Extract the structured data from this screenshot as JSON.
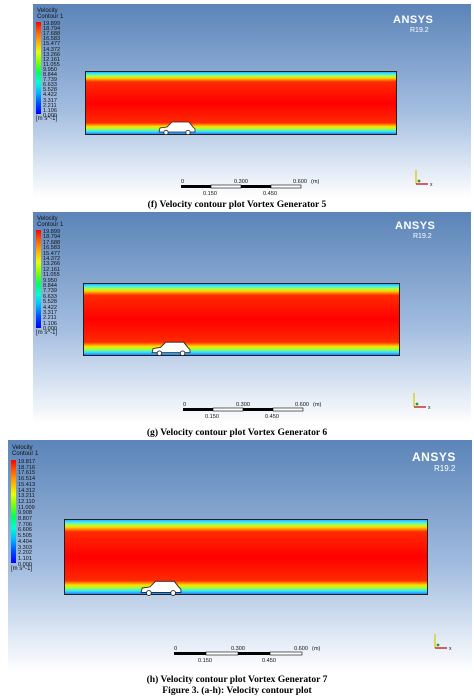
{
  "panels": [
    {
      "legend_title_1": "Velocity",
      "legend_title_2": "Contour 1",
      "ticks": [
        "19.899",
        "18.794",
        "17.688",
        "16.583",
        "15.477",
        "14.372",
        "13.266",
        "12.161",
        "11.055",
        "9.950",
        "8.844",
        "7.739",
        "6.633",
        "5.528",
        "4.422",
        "3.317",
        "2.211",
        "1.106",
        "0.000"
      ],
      "unit": "[m s^-1]",
      "brand": "ANSYS",
      "release": "R19.2",
      "scale_top": [
        "0",
        "0.300",
        "0.600",
        "(m)"
      ],
      "scale_bottom": [
        "0.150",
        "0.450"
      ],
      "caption": "(f) Velocity contour plot Vortex Generator 5"
    },
    {
      "legend_title_1": "Velocity",
      "legend_title_2": "Contour 1",
      "ticks": [
        "19.899",
        "18.794",
        "17.688",
        "16.583",
        "15.477",
        "14.372",
        "13.266",
        "12.161",
        "11.055",
        "9.950",
        "8.844",
        "7.739",
        "6.633",
        "5.528",
        "4.422",
        "3.317",
        "2.211",
        "1.106",
        "0.000"
      ],
      "unit": "[m s^-1]",
      "brand": "ANSYS",
      "release": "R19.2",
      "scale_top": [
        "0",
        "0.300",
        "0.600",
        "(m)"
      ],
      "scale_bottom": [
        "0.150",
        "0.450"
      ],
      "caption": "(g) Velocity contour plot Vortex Generator 6"
    },
    {
      "legend_title_1": "Velocity",
      "legend_title_2": "Contour 1",
      "ticks": [
        "19.817",
        "18.716",
        "17.615",
        "16.514",
        "15.413",
        "14.312",
        "13.211",
        "12.110",
        "11.009",
        "9.908",
        "8.807",
        "7.706",
        "6.606",
        "5.505",
        "4.404",
        "3.303",
        "2.202",
        "1.101",
        "0.000"
      ],
      "unit": "[m s^-1]",
      "brand": "ANSYS",
      "release": "R19.2",
      "scale_top": [
        "0",
        "0.300",
        "0.600",
        "(m)"
      ],
      "scale_bottom": [
        "0.150",
        "0.450"
      ],
      "caption": "(h) Velocity contour plot Vortex Generator 7"
    }
  ],
  "figure_caption": "Figure 3. (a-h): Velocity contour plot",
  "colors": {
    "max_velocity": "#ff0000",
    "min_velocity": "#0000ff",
    "background_top": "#5b84b8"
  }
}
